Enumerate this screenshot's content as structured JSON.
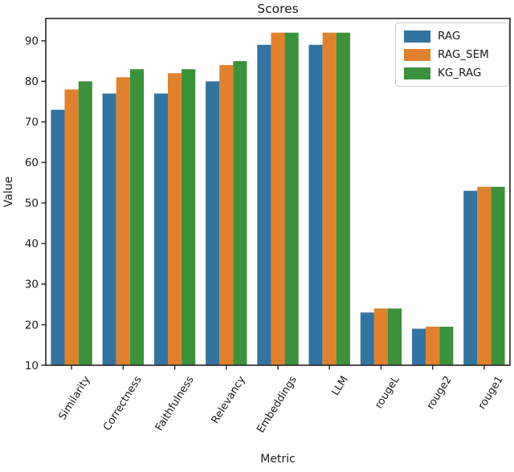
{
  "chart_data": {
    "type": "bar",
    "title": "Scores",
    "xlabel": "Metric",
    "ylabel": "Value",
    "categories": [
      "Similarity",
      "Correctness",
      "Faithfulness",
      "Relevancy",
      "Embeddings",
      "LLM",
      "rougeL",
      "rouge2",
      "rouge1"
    ],
    "series": [
      {
        "name": "RAG",
        "color": "#3274a1",
        "values": [
          73,
          77,
          77,
          80,
          89,
          89,
          23,
          19,
          53
        ]
      },
      {
        "name": "RAG_SEM",
        "color": "#e1812c",
        "values": [
          78,
          81,
          82,
          84,
          92,
          92,
          24,
          19.5,
          54
        ]
      },
      {
        "name": "KG_RAG",
        "color": "#3a923a",
        "values": [
          80,
          83,
          83,
          85,
          92,
          92,
          24,
          19.5,
          54
        ]
      }
    ],
    "ylim": [
      10,
      95.5
    ],
    "yticks": [
      10,
      20,
      30,
      40,
      50,
      60,
      70,
      80,
      90
    ],
    "grid": false,
    "legend_position": "upper right",
    "bar_group_width": 0.8,
    "x_tick_rotation": 58,
    "axis_color": "#262626",
    "text_color": "#1a1a1a"
  }
}
